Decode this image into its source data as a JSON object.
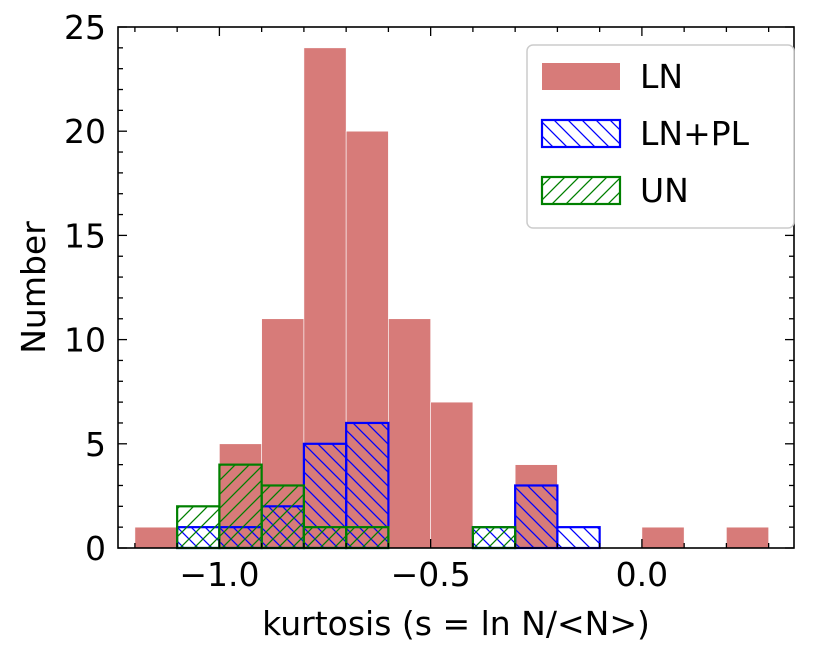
{
  "chart_data": {
    "type": "bar",
    "xlabel": "kurtosis (s = ln N/<N>)",
    "ylabel": "Number",
    "xlim": [
      -1.24,
      0.36
    ],
    "ylim": [
      0,
      25
    ],
    "bin_width": 0.1,
    "xticks": [
      -1.0,
      -0.5,
      0.0
    ],
    "xtick_labels": [
      "−1.0",
      "−0.5",
      "0.0"
    ],
    "yticks": [
      0,
      5,
      10,
      15,
      20,
      25
    ],
    "ytick_labels": [
      "0",
      "5",
      "10",
      "15",
      "20",
      "25"
    ],
    "legend_position": "top-right",
    "series": [
      {
        "name": "LN",
        "style": "filled",
        "color": "#d77b79",
        "bins": [
          {
            "x": -1.2,
            "value": 1
          },
          {
            "x": -1.0,
            "value": 5
          },
          {
            "x": -0.9,
            "value": 11
          },
          {
            "x": -0.8,
            "value": 24
          },
          {
            "x": -0.7,
            "value": 20
          },
          {
            "x": -0.6,
            "value": 11
          },
          {
            "x": -0.5,
            "value": 7
          },
          {
            "x": -0.3,
            "value": 4
          },
          {
            "x": 0.0,
            "value": 1
          },
          {
            "x": 0.2,
            "value": 1
          }
        ]
      },
      {
        "name": "LN+PL",
        "style": "hatch-backslash",
        "color": "#0000ff",
        "bins": [
          {
            "x": -1.1,
            "value": 1
          },
          {
            "x": -1.0,
            "value": 1
          },
          {
            "x": -0.9,
            "value": 2
          },
          {
            "x": -0.8,
            "value": 5
          },
          {
            "x": -0.7,
            "value": 6
          },
          {
            "x": -0.4,
            "value": 1
          },
          {
            "x": -0.3,
            "value": 3
          },
          {
            "x": -0.2,
            "value": 1
          }
        ]
      },
      {
        "name": "UN",
        "style": "hatch-slash",
        "color": "#008000",
        "bins": [
          {
            "x": -1.1,
            "value": 2
          },
          {
            "x": -1.0,
            "value": 4
          },
          {
            "x": -0.9,
            "value": 3
          },
          {
            "x": -0.8,
            "value": 1
          },
          {
            "x": -0.7,
            "value": 1
          },
          {
            "x": -0.4,
            "value": 1
          }
        ]
      }
    ]
  }
}
